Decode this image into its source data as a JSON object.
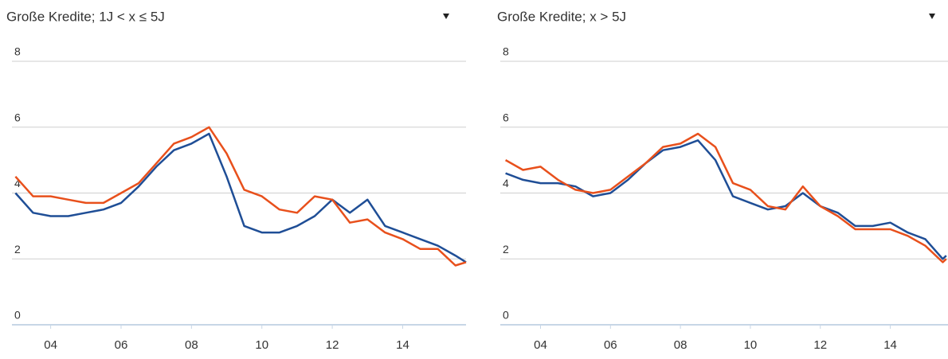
{
  "chart_data": [
    {
      "type": "line",
      "title": "Große Kredite; 1J < x ≤ 5J",
      "x": [
        2003,
        2003.5,
        2004,
        2004.5,
        2005,
        2005.5,
        2006,
        2006.5,
        2007,
        2007.5,
        2008,
        2008.5,
        2009,
        2009.5,
        2010,
        2010.5,
        2011,
        2011.5,
        2012,
        2012.5,
        2013,
        2013.5,
        2014,
        2014.5,
        2015,
        2015.5,
        2015.8
      ],
      "series": [
        {
          "color": "#1f4e96",
          "values": [
            4.0,
            3.4,
            3.3,
            3.3,
            3.4,
            3.5,
            3.7,
            4.2,
            4.8,
            5.3,
            5.5,
            5.8,
            4.5,
            3.0,
            2.8,
            2.8,
            3.0,
            3.3,
            3.8,
            3.4,
            3.8,
            3.0,
            2.8,
            2.6,
            2.4,
            2.1,
            1.9
          ]
        },
        {
          "color": "#e8501c",
          "values": [
            4.5,
            3.9,
            3.9,
            3.8,
            3.7,
            3.7,
            4.0,
            4.3,
            4.9,
            5.5,
            5.7,
            6.0,
            5.2,
            4.1,
            3.9,
            3.5,
            3.4,
            3.9,
            3.8,
            3.1,
            3.2,
            2.8,
            2.6,
            2.3,
            2.3,
            1.8,
            1.9
          ]
        }
      ],
      "xlim": [
        2002.9,
        2015.8
      ],
      "ylim": [
        0,
        8
      ],
      "yticks": [
        0,
        2,
        4,
        6,
        8
      ],
      "xticks": [
        {
          "value": 2004,
          "label": "04"
        },
        {
          "value": 2006,
          "label": "06"
        },
        {
          "value": 2008,
          "label": "08"
        },
        {
          "value": 2010,
          "label": "10"
        },
        {
          "value": 2012,
          "label": "12"
        },
        {
          "value": 2014,
          "label": "14"
        }
      ],
      "grid": true
    },
    {
      "type": "line",
      "title": "Große Kredite; x > 5J",
      "x": [
        2003,
        2003.5,
        2004,
        2004.5,
        2005,
        2005.5,
        2006,
        2006.5,
        2007,
        2007.5,
        2008,
        2008.5,
        2009,
        2009.5,
        2010,
        2010.5,
        2011,
        2011.5,
        2012,
        2012.5,
        2013,
        2013.5,
        2014,
        2014.5,
        2015,
        2015.5,
        2015.6
      ],
      "series": [
        {
          "color": "#1f4e96",
          "values": [
            4.6,
            4.4,
            4.3,
            4.3,
            4.2,
            3.9,
            4.0,
            4.4,
            4.9,
            5.3,
            5.4,
            5.6,
            5.0,
            3.9,
            3.7,
            3.5,
            3.6,
            4.0,
            3.6,
            3.4,
            3.0,
            3.0,
            3.1,
            2.8,
            2.6,
            2.0,
            2.1
          ]
        },
        {
          "color": "#e8501c",
          "values": [
            5.0,
            4.7,
            4.8,
            4.4,
            4.1,
            4.0,
            4.1,
            4.5,
            4.9,
            5.4,
            5.5,
            5.8,
            5.4,
            4.3,
            4.1,
            3.6,
            3.5,
            4.2,
            3.6,
            3.3,
            2.9,
            2.9,
            2.9,
            2.7,
            2.4,
            1.9,
            2.0
          ]
        }
      ],
      "xlim": [
        2002.85,
        2015.65
      ],
      "ylim": [
        0,
        8
      ],
      "yticks": [
        0,
        2,
        4,
        6,
        8
      ],
      "xticks": [
        {
          "value": 2004,
          "label": "04"
        },
        {
          "value": 2006,
          "label": "06"
        },
        {
          "value": 2008,
          "label": "08"
        },
        {
          "value": 2010,
          "label": "10"
        },
        {
          "value": 2012,
          "label": "12"
        },
        {
          "value": 2014,
          "label": "14"
        }
      ],
      "grid": true
    }
  ]
}
